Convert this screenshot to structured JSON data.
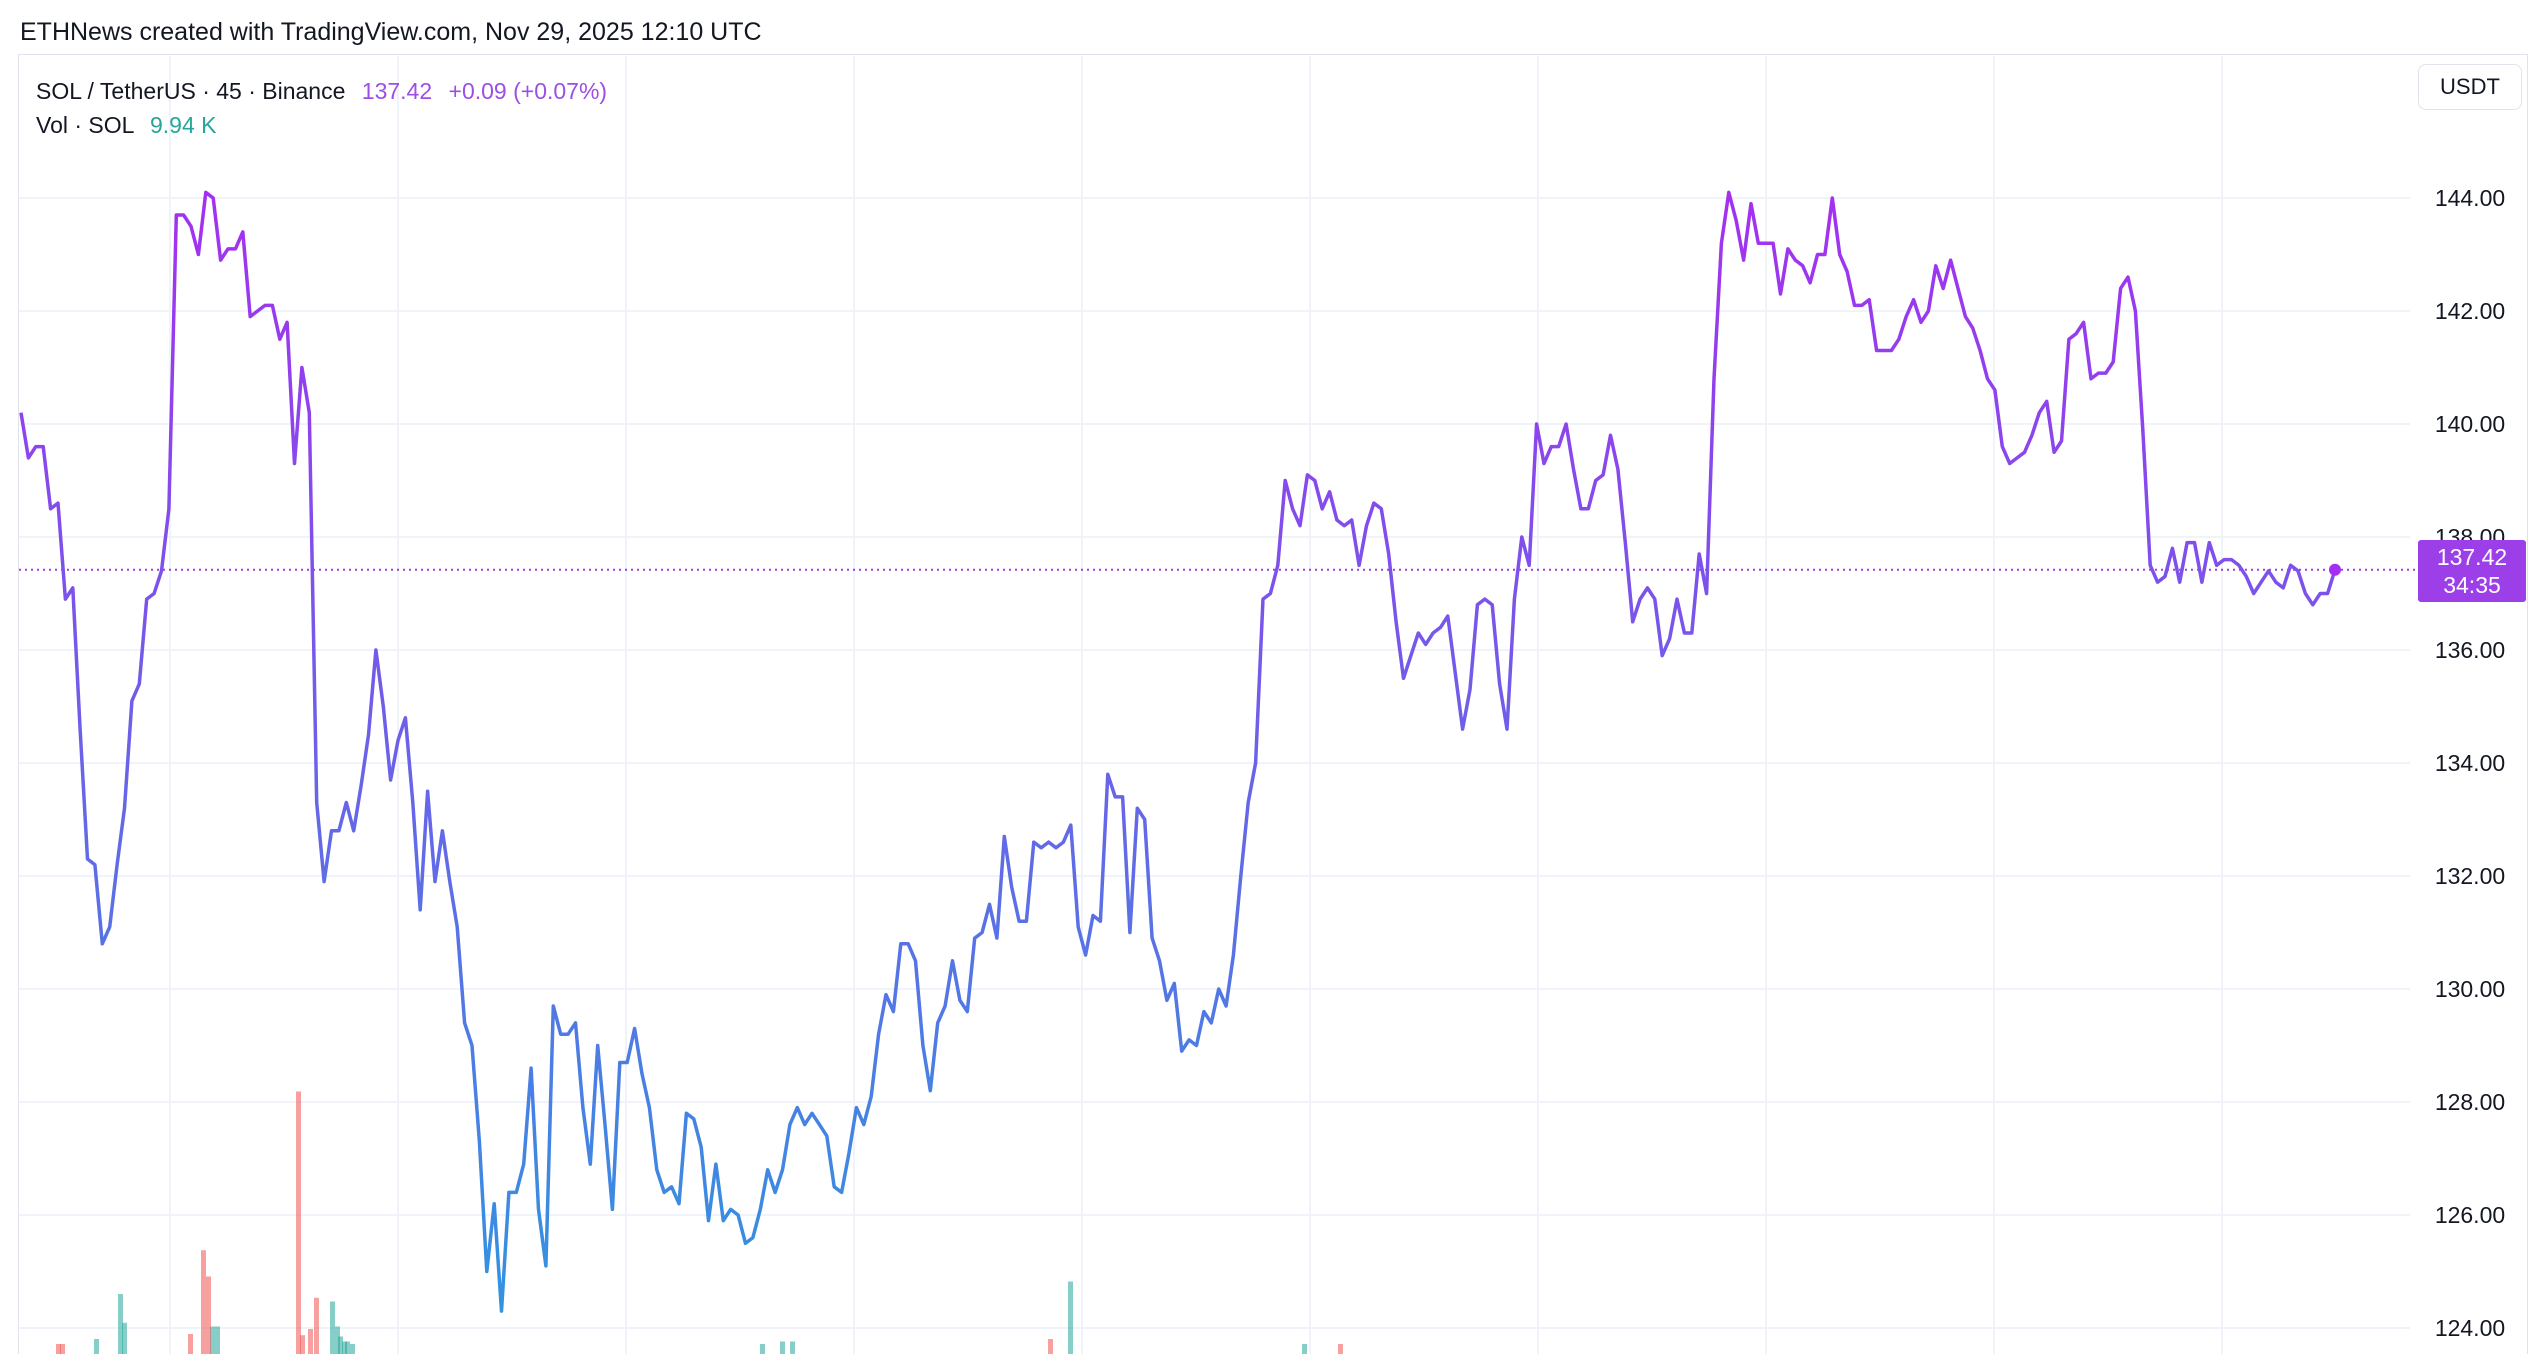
{
  "header": {
    "text": "ETHNews created with TradingView.com, Nov 29, 2025 12:10 UTC"
  },
  "legend": {
    "symbol": "SOL / TetherUS · 45 · Binance",
    "last_price": "137.42",
    "change": "+0.09 (+0.07%)",
    "volume_label": "Vol · SOL",
    "volume_value": "9.94 K"
  },
  "currency_button": {
    "label": "USDT"
  },
  "price_tag": {
    "price": "137.42",
    "countdown": "34:35"
  },
  "colors": {
    "line_start": "#2f96e0",
    "line_end": "#a52ff0",
    "volume_up": "#26a69a",
    "volume_down": "#ef5350",
    "grid": "#f0f3fa",
    "price_tag": "#9c3fe8"
  },
  "chart_data": {
    "type": "line",
    "y_ticks": [
      "124.00",
      "126.00",
      "128.00",
      "130.00",
      "132.00",
      "134.00",
      "136.00",
      "138.00",
      "140.00",
      "142.00",
      "144.00"
    ],
    "ylim": [
      123.6,
      146.3
    ],
    "current_price": 137.42,
    "series": [
      {
        "values": [
          140.2,
          139.4,
          139.6,
          139.6,
          138.5,
          138.6,
          136.9,
          137.1,
          134.6,
          132.3,
          132.2,
          130.8,
          131.1,
          132.2,
          133.2,
          135.1,
          135.4,
          136.9,
          137.0,
          137.4,
          138.5,
          143.7,
          143.7,
          143.5,
          143.0,
          144.1,
          144.0,
          142.9,
          143.1,
          143.1,
          143.4,
          141.9,
          142.0,
          142.1,
          142.1,
          141.5,
          141.8,
          139.3,
          141.0,
          140.2,
          133.3,
          131.9,
          132.8,
          132.8,
          133.3,
          132.8,
          133.6,
          134.5,
          136.0,
          135.0,
          133.7,
          134.4,
          134.8,
          133.3,
          131.4,
          133.5,
          131.9,
          132.8,
          131.9,
          131.1,
          129.4,
          129.0,
          127.3,
          125.0,
          126.2,
          124.3,
          126.4,
          126.4,
          126.9,
          128.6,
          126.1,
          125.1,
          129.7,
          129.2,
          129.2,
          129.4,
          127.9,
          126.9,
          129.0,
          127.6,
          126.1,
          128.7,
          128.7,
          129.3,
          128.5,
          127.9,
          126.8,
          126.4,
          126.5,
          126.2,
          127.8,
          127.7,
          127.2,
          125.9,
          126.9,
          125.9,
          126.1,
          126.0,
          125.5,
          125.6,
          126.1,
          126.8,
          126.4,
          126.8,
          127.6,
          127.9,
          127.6,
          127.8,
          127.6,
          127.4,
          126.5,
          126.4,
          127.1,
          127.9,
          127.6,
          128.1,
          129.2,
          129.9,
          129.6,
          130.8,
          130.8,
          130.5,
          129.0,
          128.2,
          129.4,
          129.7,
          130.5,
          129.8,
          129.6,
          130.9,
          131.0,
          131.5,
          130.9,
          132.7,
          131.8,
          131.2,
          131.2,
          132.6,
          132.5,
          132.6,
          132.5,
          132.6,
          132.9,
          131.1,
          130.6,
          131.3,
          131.2,
          133.8,
          133.4,
          133.4,
          131.0,
          133.2,
          133.0,
          130.9,
          130.5,
          129.8,
          130.1,
          128.9,
          129.1,
          129.0,
          129.6,
          129.4,
          130.0,
          129.7,
          130.6,
          132.0,
          133.3,
          134.0,
          136.9,
          137.0,
          137.5,
          139.0,
          138.5,
          138.2,
          139.1,
          139.0,
          138.5,
          138.8,
          138.3,
          138.2,
          138.3,
          137.5,
          138.2,
          138.6,
          138.5,
          137.7,
          136.5,
          135.5,
          135.9,
          136.3,
          136.1,
          136.3,
          136.4,
          136.6,
          135.6,
          134.6,
          135.3,
          136.8,
          136.9,
          136.8,
          135.4,
          134.6,
          136.9,
          138.0,
          137.5,
          140.0,
          139.3,
          139.6,
          139.6,
          140.0,
          139.2,
          138.5,
          138.5,
          139.0,
          139.1,
          139.8,
          139.2,
          137.9,
          136.5,
          136.9,
          137.1,
          136.9,
          135.9,
          136.2,
          136.9,
          136.3,
          136.3,
          137.7,
          137.0,
          140.8,
          143.2,
          144.1,
          143.6,
          142.9,
          143.9,
          143.2,
          143.2,
          143.2,
          142.3,
          143.1,
          142.9,
          142.8,
          142.5,
          143.0,
          143.0,
          144.0,
          143.0,
          142.7,
          142.1,
          142.1,
          142.2,
          141.3,
          141.3,
          141.3,
          141.5,
          141.9,
          142.2,
          141.8,
          142.0,
          142.8,
          142.4,
          142.9,
          142.4,
          141.9,
          141.7,
          141.3,
          140.8,
          140.6,
          139.6,
          139.3,
          139.4,
          139.5,
          139.8,
          140.2,
          140.4,
          139.5,
          139.7,
          141.5,
          141.6,
          141.8,
          140.8,
          140.9,
          140.9,
          141.1,
          142.4,
          142.6,
          142.0,
          139.9,
          137.5,
          137.2,
          137.3,
          137.8,
          137.2,
          137.9,
          137.9,
          137.2,
          137.9,
          137.5,
          137.6,
          137.6,
          137.5,
          137.3,
          137.0,
          137.2,
          137.4,
          137.2,
          137.1,
          137.5,
          137.4,
          137.0,
          136.8,
          137.0,
          137.0,
          137.42
        ]
      }
    ],
    "volume": {
      "up": [
        [
          118,
          0.48
        ],
        [
          122,
          0.25
        ],
        [
          94,
          0.12
        ],
        [
          210,
          0.22
        ],
        [
          215,
          0.22
        ],
        [
          330,
          0.42
        ],
        [
          335,
          0.22
        ],
        [
          338,
          0.14
        ],
        [
          342,
          0.1
        ],
        [
          345,
          0.1
        ],
        [
          350,
          0.08
        ],
        [
          760,
          0.08
        ],
        [
          780,
          0.1
        ],
        [
          790,
          0.1
        ],
        [
          1068,
          0.58
        ],
        [
          1302,
          0.08
        ]
      ],
      "down": [
        [
          56,
          0.08
        ],
        [
          60,
          0.08
        ],
        [
          188,
          0.16
        ],
        [
          201,
          0.83
        ],
        [
          206,
          0.62
        ],
        [
          296,
          2.1
        ],
        [
          300,
          0.15
        ],
        [
          308,
          0.2
        ],
        [
          314,
          0.45
        ],
        [
          1048,
          0.12
        ],
        [
          1338,
          0.08
        ]
      ]
    }
  }
}
